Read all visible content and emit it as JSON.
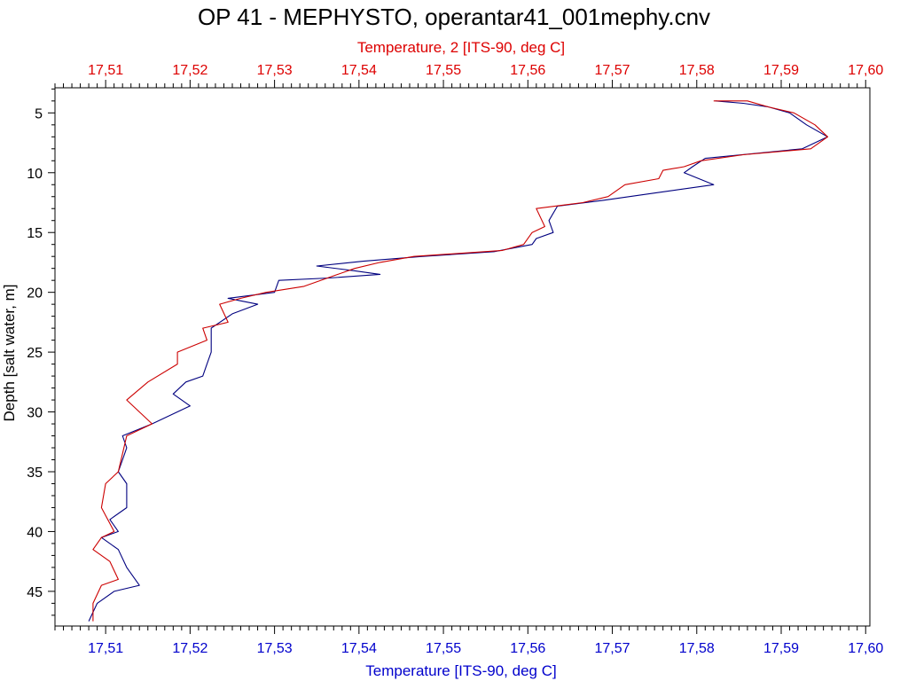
{
  "chart_data": {
    "type": "line",
    "title": "OP 41 - MEPHYSTO, operantar41_001mephy.cnv",
    "xlabel_top": "Temperature, 2 [ITS-90, deg C]",
    "xlabel_bottom": "Temperature [ITS-90, deg C]",
    "ylabel": "Depth [salt water, m]",
    "xlim": [
      17.504,
      17.6005
    ],
    "ylim": [
      2.9,
      47.9
    ],
    "y_inverted": true,
    "grid": false,
    "x_ticks": [
      "17,51",
      "17,52",
      "17,53",
      "17,54",
      "17,55",
      "17,56",
      "17,57",
      "17,58",
      "17,59",
      "17,60"
    ],
    "x_tick_values": [
      17.51,
      17.52,
      17.53,
      17.54,
      17.55,
      17.56,
      17.57,
      17.58,
      17.59,
      17.6
    ],
    "y_ticks": [
      "5",
      "10",
      "15",
      "20",
      "25",
      "30",
      "35",
      "40",
      "45"
    ],
    "y_tick_values": [
      5,
      10,
      15,
      20,
      25,
      30,
      35,
      40,
      45
    ],
    "colors": {
      "top_axis": "#dd0000",
      "bottom_axis": "#0000cc",
      "left_axis": "#000000"
    },
    "series": [
      {
        "color": "#00007f",
        "points": [
          [
            17.5822,
            4.0
          ],
          [
            17.5855,
            4.2
          ],
          [
            17.5885,
            4.5
          ],
          [
            17.591,
            5.0
          ],
          [
            17.593,
            6.0
          ],
          [
            17.5955,
            7.0
          ],
          [
            17.5925,
            8.0
          ],
          [
            17.581,
            8.8
          ],
          [
            17.5795,
            9.5
          ],
          [
            17.5785,
            10.0
          ],
          [
            17.582,
            11.0
          ],
          [
            17.575,
            11.7
          ],
          [
            17.569,
            12.3
          ],
          [
            17.5635,
            12.8
          ],
          [
            17.5625,
            14.0
          ],
          [
            17.563,
            15.0
          ],
          [
            17.561,
            15.5
          ],
          [
            17.5605,
            16.0
          ],
          [
            17.556,
            16.6
          ],
          [
            17.5475,
            17.0
          ],
          [
            17.5405,
            17.4
          ],
          [
            17.535,
            17.8
          ],
          [
            17.5395,
            18.2
          ],
          [
            17.5425,
            18.5
          ],
          [
            17.5365,
            18.8
          ],
          [
            17.5305,
            19.0
          ],
          [
            17.53,
            20.0
          ],
          [
            17.5245,
            20.5
          ],
          [
            17.528,
            21.0
          ],
          [
            17.525,
            21.8
          ],
          [
            17.5225,
            23.0
          ],
          [
            17.5225,
            25.0
          ],
          [
            17.522,
            26.0
          ],
          [
            17.5215,
            27.0
          ],
          [
            17.5195,
            27.5
          ],
          [
            17.518,
            28.5
          ],
          [
            17.52,
            29.5
          ],
          [
            17.5155,
            31.0
          ],
          [
            17.512,
            32.0
          ],
          [
            17.5125,
            33.0
          ],
          [
            17.512,
            34.0
          ],
          [
            17.5115,
            35.0
          ],
          [
            17.5125,
            36.0
          ],
          [
            17.5125,
            38.0
          ],
          [
            17.5105,
            39.0
          ],
          [
            17.5115,
            40.0
          ],
          [
            17.5095,
            40.5
          ],
          [
            17.5115,
            41.5
          ],
          [
            17.5125,
            43.0
          ],
          [
            17.514,
            44.5
          ],
          [
            17.511,
            45.0
          ],
          [
            17.509,
            46.0
          ],
          [
            17.508,
            47.5
          ]
        ]
      },
      {
        "color": "#cc0000",
        "points": [
          [
            17.582,
            4.0
          ],
          [
            17.586,
            4.0
          ],
          [
            17.5885,
            4.5
          ],
          [
            17.5915,
            5.0
          ],
          [
            17.594,
            6.0
          ],
          [
            17.5955,
            7.0
          ],
          [
            17.5935,
            8.0
          ],
          [
            17.5855,
            8.5
          ],
          [
            17.5805,
            9.0
          ],
          [
            17.5785,
            9.5
          ],
          [
            17.576,
            9.8
          ],
          [
            17.5755,
            10.5
          ],
          [
            17.5715,
            11.0
          ],
          [
            17.5695,
            12.0
          ],
          [
            17.5665,
            12.5
          ],
          [
            17.561,
            13.0
          ],
          [
            17.562,
            14.5
          ],
          [
            17.5605,
            15.0
          ],
          [
            17.5595,
            16.0
          ],
          [
            17.557,
            16.5
          ],
          [
            17.5465,
            17.0
          ],
          [
            17.5425,
            17.5
          ],
          [
            17.5395,
            18.0
          ],
          [
            17.5375,
            18.5
          ],
          [
            17.5335,
            19.5
          ],
          [
            17.529,
            20.0
          ],
          [
            17.526,
            20.5
          ],
          [
            17.5235,
            21.0
          ],
          [
            17.5245,
            22.5
          ],
          [
            17.5215,
            23.0
          ],
          [
            17.522,
            24.0
          ],
          [
            17.5185,
            25.0
          ],
          [
            17.5185,
            26.0
          ],
          [
            17.515,
            27.5
          ],
          [
            17.5125,
            29.0
          ],
          [
            17.5155,
            31.0
          ],
          [
            17.5125,
            32.0
          ],
          [
            17.5115,
            35.0
          ],
          [
            17.51,
            36.0
          ],
          [
            17.5095,
            38.0
          ],
          [
            17.511,
            40.0
          ],
          [
            17.5095,
            40.5
          ],
          [
            17.5085,
            41.5
          ],
          [
            17.5105,
            42.5
          ],
          [
            17.5115,
            44.0
          ],
          [
            17.5095,
            44.5
          ],
          [
            17.5085,
            46.0
          ],
          [
            17.5085,
            47.5
          ]
        ]
      }
    ]
  }
}
